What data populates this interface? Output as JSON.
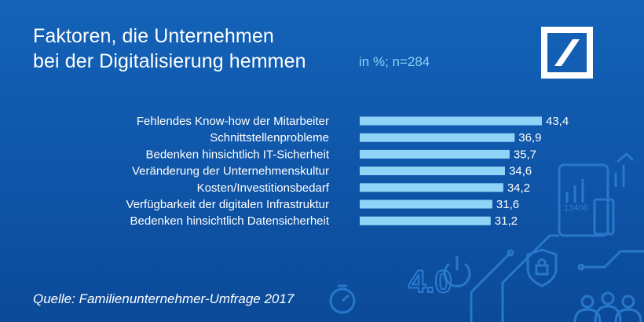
{
  "header": {
    "title_line1": "Faktoren, die Unternehmen",
    "title_line2": "bei der Digitalisierung hemmen",
    "unit_note": "in %; n=284"
  },
  "footer": {
    "source": "Quelle: Familienunternehmer-Umfrage 2017"
  },
  "logo": {
    "name": "deutsche-bank-logo",
    "color": "#ffffff"
  },
  "decoration": {
    "screen_number": "13406",
    "big_text": "4.0"
  },
  "colors": {
    "background": "#1463b8",
    "bar": "#8fd3f6",
    "text": "#ffffff",
    "accent_text": "#8ad0f5"
  },
  "chart_data": {
    "type": "bar",
    "orientation": "horizontal",
    "categories": [
      "Fehlendes Know-how der Mitarbeiter",
      "Schnittstellenprobleme",
      "Bedenken hinsichtlich IT-Sicherheit",
      "Veränderung der Unternehmenskultur",
      "Kosten/Investitionsbedarf",
      "Verfügbarkeit der digitalen Infrastruktur",
      "Bedenken hinsichtlich Datensicherheit"
    ],
    "values": [
      43.4,
      36.9,
      35.7,
      34.6,
      34.2,
      31.6,
      31.2
    ],
    "value_labels": [
      "43,4",
      "36,9",
      "35,7",
      "34,6",
      "34,2",
      "31,6",
      "31,2"
    ],
    "title": "Faktoren, die Unternehmen bei der Digitalisierung hemmen",
    "xlabel": "",
    "ylabel": "",
    "xlim": [
      0,
      43.4
    ],
    "grid": false,
    "legend": "none"
  }
}
